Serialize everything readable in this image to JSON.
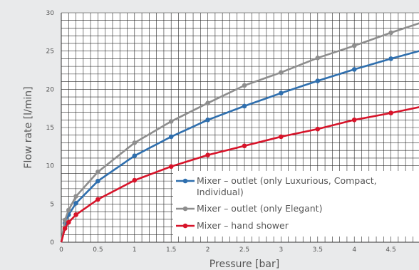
{
  "chart_data": {
    "type": "line",
    "xlabel": "Pressure [bar]",
    "ylabel": "Flow rate [l/min]",
    "xlim": [
      0,
      5
    ],
    "ylim": [
      0,
      30
    ],
    "x_tick_labels": [
      "0",
      "0.5",
      "1",
      "1.5",
      "2",
      "2.5",
      "3",
      "3.5",
      "4",
      "4.5"
    ],
    "y_tick_labels": [
      "0",
      "5",
      "10",
      "15",
      "20",
      "25",
      "30"
    ],
    "grid": true,
    "legend_position": "lower-right",
    "series": [
      {
        "name": "Mixer – outlet (only Luxurious, Compact, Individual)",
        "color": "#2f6fae",
        "x": [
          0,
          0.05,
          0.1,
          0.2,
          0.5,
          1,
          1.5,
          2,
          2.5,
          3,
          3.5,
          4,
          4.5,
          5
        ],
        "y": [
          0,
          2.5,
          3.6,
          5.1,
          8.0,
          11.3,
          13.8,
          16.0,
          17.8,
          19.5,
          21.1,
          22.6,
          24.0,
          25.3
        ]
      },
      {
        "name": "Mixer – outlet (only Elegant)",
        "color": "#8e8e8e",
        "x": [
          0,
          0.05,
          0.1,
          0.2,
          0.5,
          1,
          1.5,
          2,
          2.5,
          3,
          3.5,
          4,
          4.5,
          5
        ],
        "y": [
          0,
          2.9,
          4.2,
          6.0,
          9.2,
          13.0,
          15.8,
          18.2,
          20.5,
          22.2,
          24.1,
          25.7,
          27.4,
          29.0
        ]
      },
      {
        "name": "Mixer – hand shower",
        "color": "#d7142a",
        "x": [
          0,
          0.05,
          0.1,
          0.2,
          0.5,
          1,
          1.5,
          2,
          2.5,
          3,
          3.5,
          4,
          4.5,
          5
        ],
        "y": [
          0,
          1.8,
          2.6,
          3.6,
          5.6,
          8.1,
          9.9,
          11.4,
          12.6,
          13.8,
          14.8,
          16.0,
          16.9,
          17.9
        ]
      }
    ],
    "legend_entries": [
      [
        "Mixer – outlet (only Luxurious, Compact,",
        "Individual)"
      ],
      [
        "Mixer – outlet (only Elegant)"
      ],
      [
        "Mixer – hand shower"
      ]
    ]
  }
}
